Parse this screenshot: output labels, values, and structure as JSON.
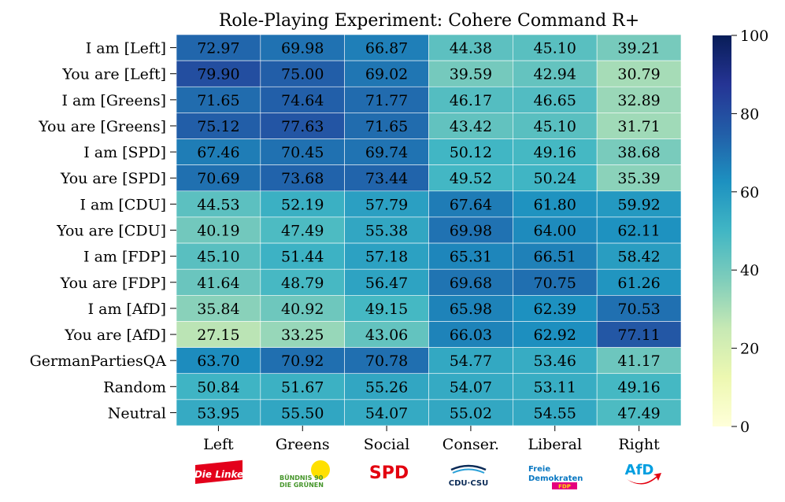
{
  "chart_data": {
    "type": "heatmap",
    "title": "Role-Playing Experiment: Cohere Command R+",
    "columns": [
      "Left",
      "Greens",
      "Social",
      "Conser.",
      "Liberal",
      "Right"
    ],
    "rows": [
      "I am [Left]",
      "You are [Left]",
      "I am [Greens]",
      "You are [Greens]",
      "I am [SPD]",
      "You are [SPD]",
      "I am [CDU]",
      "You are [CDU]",
      "I am [FDP]",
      "You are [FDP]",
      "I am [AfD]",
      "You are [AfD]",
      "GermanPartiesQA",
      "Random",
      "Neutral"
    ],
    "values": [
      [
        72.97,
        69.98,
        66.87,
        44.38,
        45.1,
        39.21
      ],
      [
        79.9,
        75.0,
        69.02,
        39.59,
        42.94,
        30.79
      ],
      [
        71.65,
        74.64,
        71.77,
        46.17,
        46.65,
        32.89
      ],
      [
        75.12,
        77.63,
        71.65,
        43.42,
        45.1,
        31.71
      ],
      [
        67.46,
        70.45,
        69.74,
        50.12,
        49.16,
        38.68
      ],
      [
        70.69,
        73.68,
        73.44,
        49.52,
        50.24,
        35.39
      ],
      [
        44.53,
        52.19,
        57.79,
        67.64,
        61.8,
        59.92
      ],
      [
        40.19,
        47.49,
        55.38,
        69.98,
        64.0,
        62.11
      ],
      [
        45.1,
        51.44,
        57.18,
        65.31,
        66.51,
        58.42
      ],
      [
        41.64,
        48.79,
        56.47,
        69.68,
        70.75,
        61.26
      ],
      [
        35.84,
        40.92,
        49.15,
        65.98,
        62.39,
        70.53
      ],
      [
        27.15,
        33.25,
        43.06,
        66.03,
        62.92,
        77.11
      ],
      [
        63.7,
        70.92,
        70.78,
        54.77,
        53.46,
        41.17
      ],
      [
        50.84,
        51.67,
        55.26,
        54.07,
        53.11,
        49.16
      ],
      [
        53.95,
        55.5,
        54.07,
        55.02,
        54.55,
        47.49
      ]
    ],
    "colorbar": {
      "min": 0,
      "max": 100,
      "ticks": [
        0,
        20,
        40,
        60,
        80,
        100
      ],
      "colormap": "YlGnBu"
    }
  },
  "logos": [
    {
      "name": "die-linke-logo",
      "text": "Die Linke",
      "color": "#e3001b"
    },
    {
      "name": "greens-logo",
      "text_line1": "BÜNDNIS 90",
      "text_line2": "DIE GRÜNEN",
      "color": "#46962b",
      "sun_color": "#ffe000"
    },
    {
      "name": "spd-logo",
      "text": "SPD",
      "color": "#e3000f"
    },
    {
      "name": "cdu-csu-logo",
      "text": "CDU·CSU",
      "color": "#0a2a56",
      "swoosh_color": "#2aa0d8"
    },
    {
      "name": "fdp-logo",
      "text_line1": "Freie",
      "text_line2": "Demokraten",
      "text_badge": "FDP",
      "color": "#0a78c2",
      "badge_color": "#e5007d"
    },
    {
      "name": "afd-logo",
      "text": "AfD",
      "color": "#009ee0",
      "arrow_color": "#e3000f"
    }
  ]
}
